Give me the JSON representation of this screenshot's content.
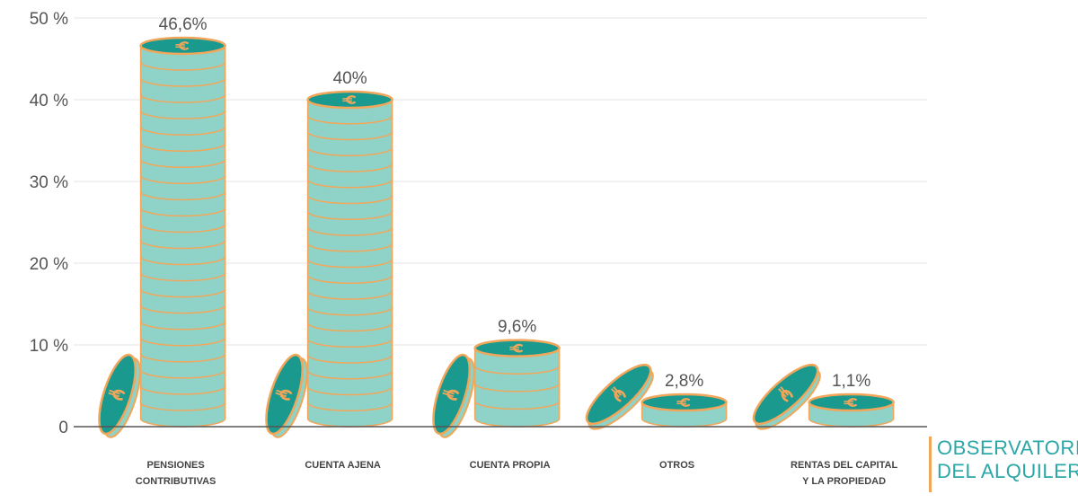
{
  "chart_data": {
    "type": "bar",
    "categories": [
      [
        "PENSIONES",
        "CONTRIBUTIVAS"
      ],
      [
        "CUENTA AJENA"
      ],
      [
        "CUENTA PROPIA"
      ],
      [
        "OTROS"
      ],
      [
        "RENTAS DEL CAPITAL",
        "Y LA PROPIEDAD"
      ]
    ],
    "values": [
      46.6,
      40,
      9.6,
      2.8,
      1.1
    ],
    "value_labels": [
      "46,6%",
      "40%",
      "9,6%",
      "2,8%",
      "1,1%"
    ],
    "yticks": [
      {
        "value": 0,
        "label": "0"
      },
      {
        "value": 10,
        "label": "10 %"
      },
      {
        "value": 20,
        "label": "20 %"
      },
      {
        "value": 30,
        "label": "30 %"
      },
      {
        "value": 40,
        "label": "40 %"
      },
      {
        "value": 50,
        "label": "50 %"
      }
    ],
    "ylim": [
      0,
      50
    ],
    "grid": true,
    "colors": {
      "coin_face": "#1a9a8f",
      "coin_side": "#8fd3c8",
      "coin_rim": "#f2a65a",
      "grid": "#e6e6e6",
      "axis": "#555555"
    }
  },
  "branding": {
    "line1": "OBSERVATORIO",
    "line2": "DEL ALQUILER",
    "color": "#2ba7a8",
    "bar_color": "#f2a65a"
  }
}
